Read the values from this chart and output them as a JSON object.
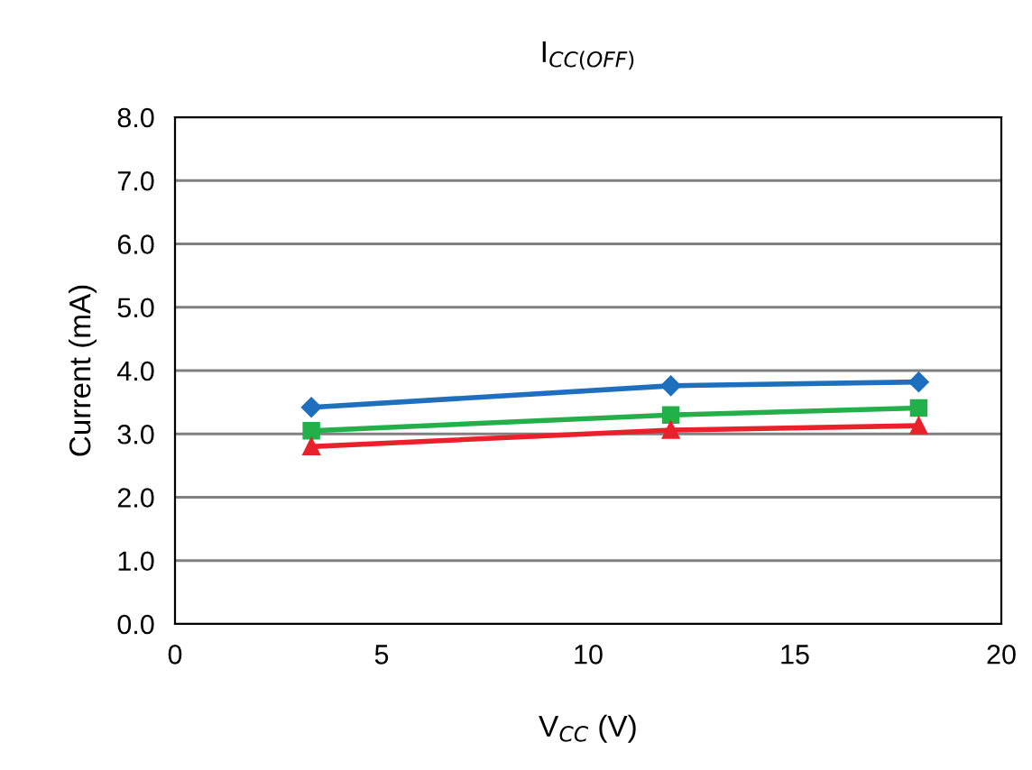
{
  "chart_data": {
    "type": "line",
    "title": "I$_{CC(OFF)}$",
    "xlabel": "V$_{CC}$ (V)",
    "ylabel": "Current (mA)",
    "x": [
      3.3,
      12,
      18
    ],
    "series": [
      {
        "color": "#1f6fbf",
        "marker": "diamond",
        "values": [
          3.42,
          3.76,
          3.82
        ]
      },
      {
        "color": "#22b04b",
        "marker": "square",
        "values": [
          3.05,
          3.3,
          3.41
        ]
      },
      {
        "color": "#e8212a",
        "marker": "triangle",
        "values": [
          2.8,
          3.06,
          3.13
        ]
      }
    ],
    "xlim": [
      0,
      20
    ],
    "xticks": [
      0,
      5,
      10,
      15,
      20
    ],
    "ylim": [
      0,
      8
    ],
    "yticks": [
      {
        "value": 0,
        "label": "0.0"
      },
      {
        "value": 1,
        "label": "1.0"
      },
      {
        "value": 2,
        "label": "2.0"
      },
      {
        "value": 3,
        "label": "3.0"
      },
      {
        "value": 4,
        "label": "4.0"
      },
      {
        "value": 5,
        "label": "5.0"
      },
      {
        "value": 6,
        "label": "6.0"
      },
      {
        "value": 7,
        "label": "7.0"
      },
      {
        "value": 8,
        "label": "8.0"
      }
    ],
    "grid": "y",
    "legend": false
  }
}
